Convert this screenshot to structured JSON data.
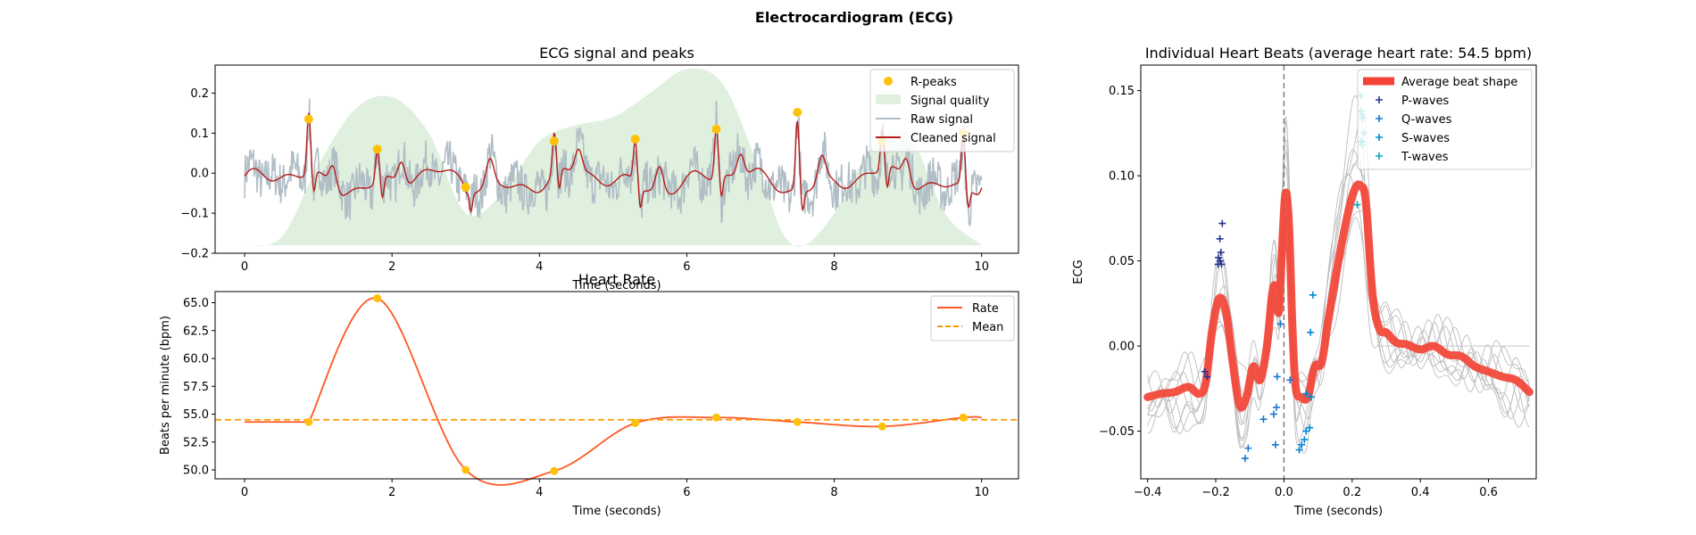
{
  "figure": {
    "title": "Electrocardiogram (ECG)"
  },
  "chart_data": [
    {
      "type": "line",
      "id": "ecg",
      "title": "ECG signal and peaks",
      "xlabel": "Time (seconds)",
      "ylabel": "",
      "xlim": [
        -0.4,
        10.5
      ],
      "ylim": [
        -0.2,
        0.27
      ],
      "xticks": [
        0,
        2,
        4,
        6,
        8,
        10
      ],
      "yticks": [
        -0.2,
        -0.1,
        0.0,
        0.1,
        0.2
      ],
      "grid": false,
      "legend_position": "top-right",
      "legend": [
        "R-peaks",
        "Signal quality",
        "Raw signal",
        "Cleaned signal"
      ],
      "colors": {
        "peaks": "#FFC107",
        "quality": "#DFF0DF",
        "raw": "#B0BEC5",
        "cleaned": "#B71C1C"
      },
      "r_peaks": {
        "name": "R-peaks",
        "x": [
          0.87,
          1.8,
          3.0,
          4.2,
          5.3,
          6.4,
          7.5,
          8.65,
          9.75
        ],
        "y": [
          0.135,
          0.06,
          -0.035,
          0.08,
          0.085,
          0.11,
          0.152,
          0.08,
          0.1
        ]
      },
      "signal_quality": {
        "name": "Signal quality",
        "x": [
          0,
          0.5,
          1.0,
          1.5,
          2.0,
          2.5,
          3.0,
          3.5,
          4.0,
          4.5,
          5.0,
          5.5,
          6.0,
          6.5,
          7.0,
          7.3,
          7.6,
          8.0,
          8.5,
          9.0,
          9.5,
          10.0
        ],
        "y": [
          -0.18,
          -0.16,
          0.02,
          0.16,
          0.19,
          0.1,
          -0.1,
          -0.05,
          0.08,
          0.12,
          0.14,
          0.2,
          0.26,
          0.22,
          0.0,
          -0.15,
          -0.18,
          -0.1,
          0.06,
          0.1,
          -0.1,
          -0.18
        ]
      },
      "series": [
        {
          "name": "Raw signal",
          "kind": "noisy-ecg",
          "x_range": [
            0,
            10
          ],
          "noise_amplitude": 0.055
        },
        {
          "name": "Cleaned signal",
          "kind": "ecg",
          "x_range": [
            0,
            10
          ],
          "baseline": -0.02
        }
      ]
    },
    {
      "type": "line",
      "id": "heart-rate",
      "title": "Heart Rate",
      "xlabel": "Time (seconds)",
      "ylabel": "Beats per minute (bpm)",
      "xlim": [
        -0.4,
        10.5
      ],
      "ylim": [
        49.2,
        66.0
      ],
      "xticks": [
        0,
        2,
        4,
        6,
        8,
        10
      ],
      "yticks": [
        50.0,
        52.5,
        55.0,
        57.5,
        60.0,
        62.5,
        65.0
      ],
      "grid": false,
      "legend_position": "top-right",
      "legend": [
        "Rate",
        "Mean"
      ],
      "colors": {
        "rate": "#FF5722",
        "mean": "#FF9800",
        "points": "#FFC107"
      },
      "points": {
        "x": [
          0.87,
          1.8,
          3.0,
          4.2,
          5.3,
          6.4,
          7.5,
          8.65,
          9.75
        ],
        "y": [
          54.3,
          65.4,
          50.0,
          49.9,
          54.2,
          54.7,
          54.3,
          53.9,
          54.7
        ]
      },
      "rate_start": 54.3,
      "mean": 54.5,
      "series": [
        {
          "name": "Rate"
        },
        {
          "name": "Mean",
          "value": 54.5
        }
      ]
    },
    {
      "type": "line",
      "id": "heartbeats",
      "title": "Individual Heart Beats (average heart rate: 54.5 bpm)",
      "xlabel": "Time (seconds)",
      "ylabel": "ECG",
      "xlim": [
        -0.42,
        0.74
      ],
      "ylim": [
        -0.078,
        0.165
      ],
      "xticks": [
        -0.4,
        -0.2,
        0.0,
        0.2,
        0.4,
        0.6
      ],
      "xtick_labels": [
        "−0.4",
        "−0.2",
        "0.0",
        "0.2",
        "0.4",
        "0.6"
      ],
      "yticks": [
        -0.05,
        0.0,
        0.05,
        0.1,
        0.15
      ],
      "ytick_labels": [
        "−0.05",
        "0.00",
        "0.05",
        "0.10",
        "0.15"
      ],
      "grid": false,
      "legend_position": "top-right",
      "legend": [
        "Average beat shape",
        "P-waves",
        "Q-waves",
        "S-waves",
        "T-waves"
      ],
      "colors": {
        "average": "#F44336",
        "p": "#283593",
        "q": "#1976D2",
        "s": "#0288D1",
        "t": "#00ACC1",
        "beats": "#BDBDBD"
      },
      "average_beat": {
        "name": "Average beat shape",
        "x": [
          -0.4,
          -0.36,
          -0.32,
          -0.28,
          -0.25,
          -0.23,
          -0.21,
          -0.19,
          -0.17,
          -0.15,
          -0.13,
          -0.11,
          -0.09,
          -0.07,
          -0.05,
          -0.035,
          -0.025,
          -0.015,
          -0.005,
          0.005,
          0.015,
          0.025,
          0.035,
          0.05,
          0.07,
          0.09,
          0.11,
          0.13,
          0.16,
          0.19,
          0.21,
          0.225,
          0.24,
          0.26,
          0.28,
          0.3,
          0.33,
          0.36,
          0.4,
          0.44,
          0.48,
          0.52,
          0.56,
          0.6,
          0.64,
          0.68,
          0.72
        ],
        "y": [
          -0.03,
          -0.028,
          -0.027,
          -0.024,
          -0.028,
          -0.022,
          0.01,
          0.028,
          0.02,
          -0.01,
          -0.035,
          -0.03,
          -0.012,
          -0.02,
          0.0,
          0.03,
          0.035,
          0.02,
          0.06,
          0.09,
          0.07,
          0.01,
          -0.025,
          -0.03,
          -0.03,
          -0.012,
          -0.01,
          0.015,
          0.05,
          0.08,
          0.093,
          0.094,
          0.085,
          0.03,
          0.01,
          0.008,
          0.002,
          0.001,
          -0.002,
          0.0,
          -0.005,
          -0.006,
          -0.012,
          -0.015,
          -0.018,
          -0.02,
          -0.027
        ]
      },
      "individual_beats": {
        "count": 9,
        "line_color": "#BDBDBD"
      },
      "markers": {
        "P-waves": {
          "x": [
            -0.193,
            -0.187,
            -0.192,
            -0.185,
            -0.188,
            -0.181,
            -0.183,
            -0.232,
            -0.225
          ],
          "y": [
            0.048,
            0.05,
            0.052,
            0.055,
            0.063,
            0.072,
            0.048,
            -0.015,
            -0.018
          ]
        },
        "Q-waves": {
          "x": [
            -0.114,
            -0.105,
            -0.06,
            -0.025,
            -0.022,
            0.018,
            -0.02,
            -0.01,
            -0.03
          ],
          "y": [
            -0.066,
            -0.06,
            -0.043,
            -0.058,
            -0.036,
            -0.02,
            -0.018,
            0.013,
            -0.04
          ]
        },
        "S-waves": {
          "x": [
            0.045,
            0.052,
            0.06,
            0.065,
            0.075,
            0.08,
            0.085,
            0.078,
            0.065
          ],
          "y": [
            -0.061,
            -0.058,
            -0.055,
            -0.05,
            -0.048,
            -0.03,
            0.03,
            0.008,
            -0.028
          ]
        },
        "T-waves": {
          "x": [
            0.225,
            0.228,
            0.232,
            0.225,
            0.23,
            0.235,
            0.215,
            0.228,
            0.231
          ],
          "y": [
            0.147,
            0.136,
            0.134,
            0.12,
            0.118,
            0.125,
            0.083,
            0.138,
            0.12
          ]
        }
      },
      "vline_x": 0.0
    }
  ]
}
